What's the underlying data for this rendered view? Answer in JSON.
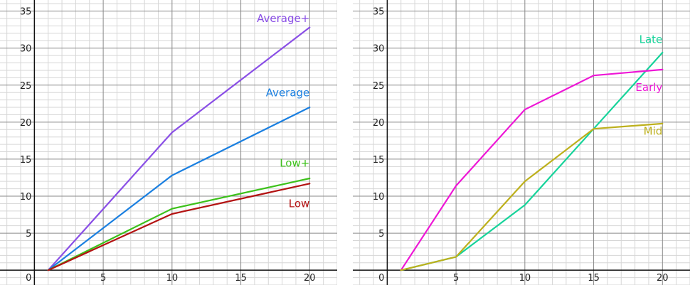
{
  "chart_data": [
    {
      "type": "line",
      "title": "",
      "xlabel": "",
      "ylabel": "",
      "xlim": [
        -2.5,
        22
      ],
      "ylim": [
        -2,
        36.5
      ],
      "xticks": [
        5,
        10,
        15,
        20
      ],
      "yticks": [
        5,
        10,
        15,
        20,
        25,
        30,
        35
      ],
      "origin_label": "0",
      "grid": true,
      "series": [
        {
          "name": "Average+",
          "color": "#8a4fe6",
          "x": [
            1,
            10,
            20
          ],
          "y": [
            0,
            18.6,
            32.8
          ]
        },
        {
          "name": "Average",
          "color": "#1a7fe0",
          "x": [
            1,
            10,
            20
          ],
          "y": [
            0,
            12.8,
            22.0
          ]
        },
        {
          "name": "Low+",
          "color": "#3cc11a",
          "x": [
            1,
            10,
            20
          ],
          "y": [
            0,
            8.3,
            12.4
          ]
        },
        {
          "name": "Low",
          "color": "#b31212",
          "x": [
            1,
            10,
            20
          ],
          "y": [
            0,
            7.6,
            11.7
          ]
        }
      ],
      "labels": [
        {
          "series": 0,
          "x": 20,
          "y": 33.5
        },
        {
          "series": 1,
          "x": 20,
          "y": 23.5
        },
        {
          "series": 2,
          "x": 20,
          "y": 14
        },
        {
          "series": 3,
          "x": 20,
          "y": 8.5
        }
      ]
    },
    {
      "type": "line",
      "title": "",
      "xlabel": "",
      "ylabel": "",
      "xlim": [
        -2.5,
        22
      ],
      "ylim": [
        -2,
        36.5
      ],
      "xticks": [
        5,
        10,
        15,
        20
      ],
      "yticks": [
        5,
        10,
        15,
        20,
        25,
        30,
        35
      ],
      "origin_label": "0",
      "grid": true,
      "series": [
        {
          "name": "Late",
          "color": "#16d39a",
          "x": [
            1,
            5,
            10,
            15,
            20
          ],
          "y": [
            0,
            1.8,
            8.8,
            19.1,
            29.4
          ]
        },
        {
          "name": "Early",
          "color": "#ee16d6",
          "x": [
            1,
            5,
            10,
            15,
            20
          ],
          "y": [
            0,
            11.4,
            21.7,
            26.3,
            27.1
          ]
        },
        {
          "name": "Mid",
          "color": "#bdb01c",
          "x": [
            1,
            5,
            10,
            15,
            20
          ],
          "y": [
            0,
            1.8,
            12.0,
            19.1,
            19.8
          ]
        }
      ],
      "labels": [
        {
          "series": 0,
          "x": 20,
          "y": 30.7
        },
        {
          "series": 1,
          "x": 20,
          "y": 24.2
        },
        {
          "series": 2,
          "x": 20,
          "y": 18.3
        }
      ]
    }
  ]
}
